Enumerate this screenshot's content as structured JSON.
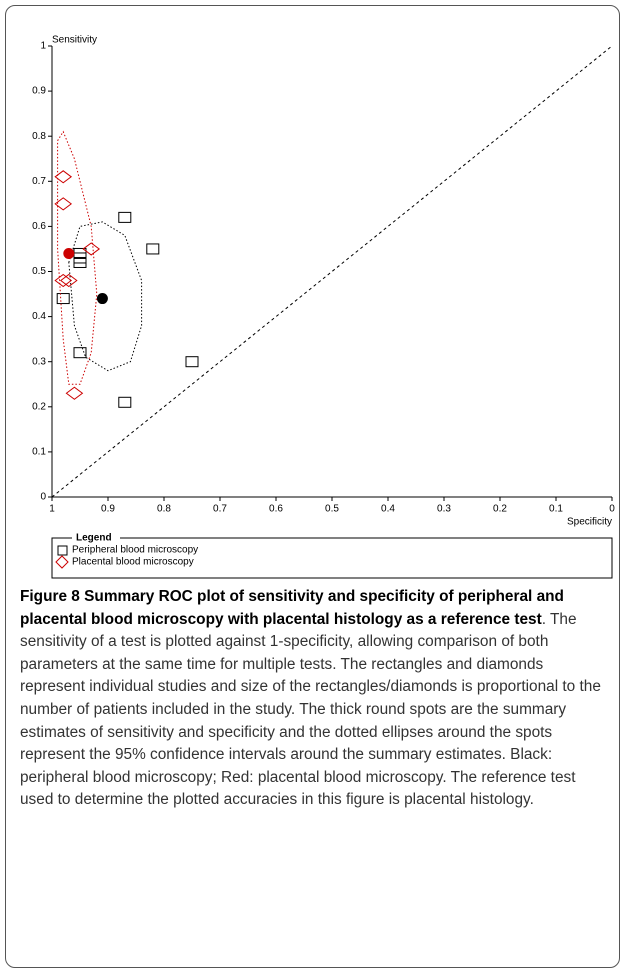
{
  "chart_data": {
    "type": "scatter",
    "y_label": "Sensitivity",
    "x_label": "Specificity",
    "xlim": [
      1,
      0
    ],
    "xticks": [
      1,
      0.9,
      0.8,
      0.7,
      0.6,
      0.5,
      0.4,
      0.3,
      0.2,
      0.1,
      0
    ],
    "ylim": [
      0,
      1
    ],
    "yticks": [
      0,
      0.1,
      0.2,
      0.3,
      0.4,
      0.5,
      0.6,
      0.7,
      0.8,
      0.9,
      1
    ],
    "legend_title": "Legend",
    "series": [
      {
        "name": "Peripheral blood microscopy",
        "color": "#000000",
        "marker": "square",
        "x": [
          0.87,
          0.82,
          0.95,
          0.95,
          0.95,
          0.98,
          0.95,
          0.75,
          0.87
        ],
        "values": [
          0.62,
          0.55,
          0.54,
          0.53,
          0.52,
          0.44,
          0.32,
          0.3,
          0.21
        ],
        "summary": {
          "x": 0.91,
          "y": 0.44
        },
        "region": {
          "x": [
            0.97,
            0.95,
            0.91,
            0.87,
            0.84,
            0.84,
            0.86,
            0.9,
            0.94,
            0.96,
            0.97
          ],
          "y": [
            0.52,
            0.6,
            0.61,
            0.58,
            0.48,
            0.38,
            0.3,
            0.28,
            0.31,
            0.38,
            0.52
          ]
        }
      },
      {
        "name": "Placental blood microscopy",
        "color": "#cc0000",
        "marker": "diamond",
        "x": [
          0.98,
          0.98,
          0.93,
          0.97,
          0.98,
          0.96
        ],
        "values": [
          0.71,
          0.65,
          0.55,
          0.48,
          0.48,
          0.23
        ],
        "summary": {
          "x": 0.97,
          "y": 0.54
        },
        "region": {
          "x": [
            0.99,
            0.98,
            0.96,
            0.93,
            0.92,
            0.93,
            0.95,
            0.97,
            0.98,
            0.99,
            0.99
          ],
          "y": [
            0.79,
            0.81,
            0.75,
            0.6,
            0.45,
            0.32,
            0.25,
            0.25,
            0.35,
            0.55,
            0.79
          ]
        }
      }
    ]
  },
  "caption": {
    "label": "Figure 8",
    "title": "Summary ROC plot of sensitivity and specificity of peripheral and placental blood microscopy with placental histology as a reference test",
    "body": ". The sensitivity of a test is plotted against 1-specificity, allowing comparison of both parameters at the same time for multiple tests. The rectangles and diamonds represent individual studies and size of the rectangles/diamonds is proportional to the number of patients included in the study. The thick round spots are the summary estimates of sensitivity and specificity and the dotted ellipses around the spots represent the 95% confidence intervals around the summary estimates. Black: peripheral blood microscopy; Red: placental blood microscopy. The reference test used to determine the plotted accuracies in this figure is placental histology."
  }
}
